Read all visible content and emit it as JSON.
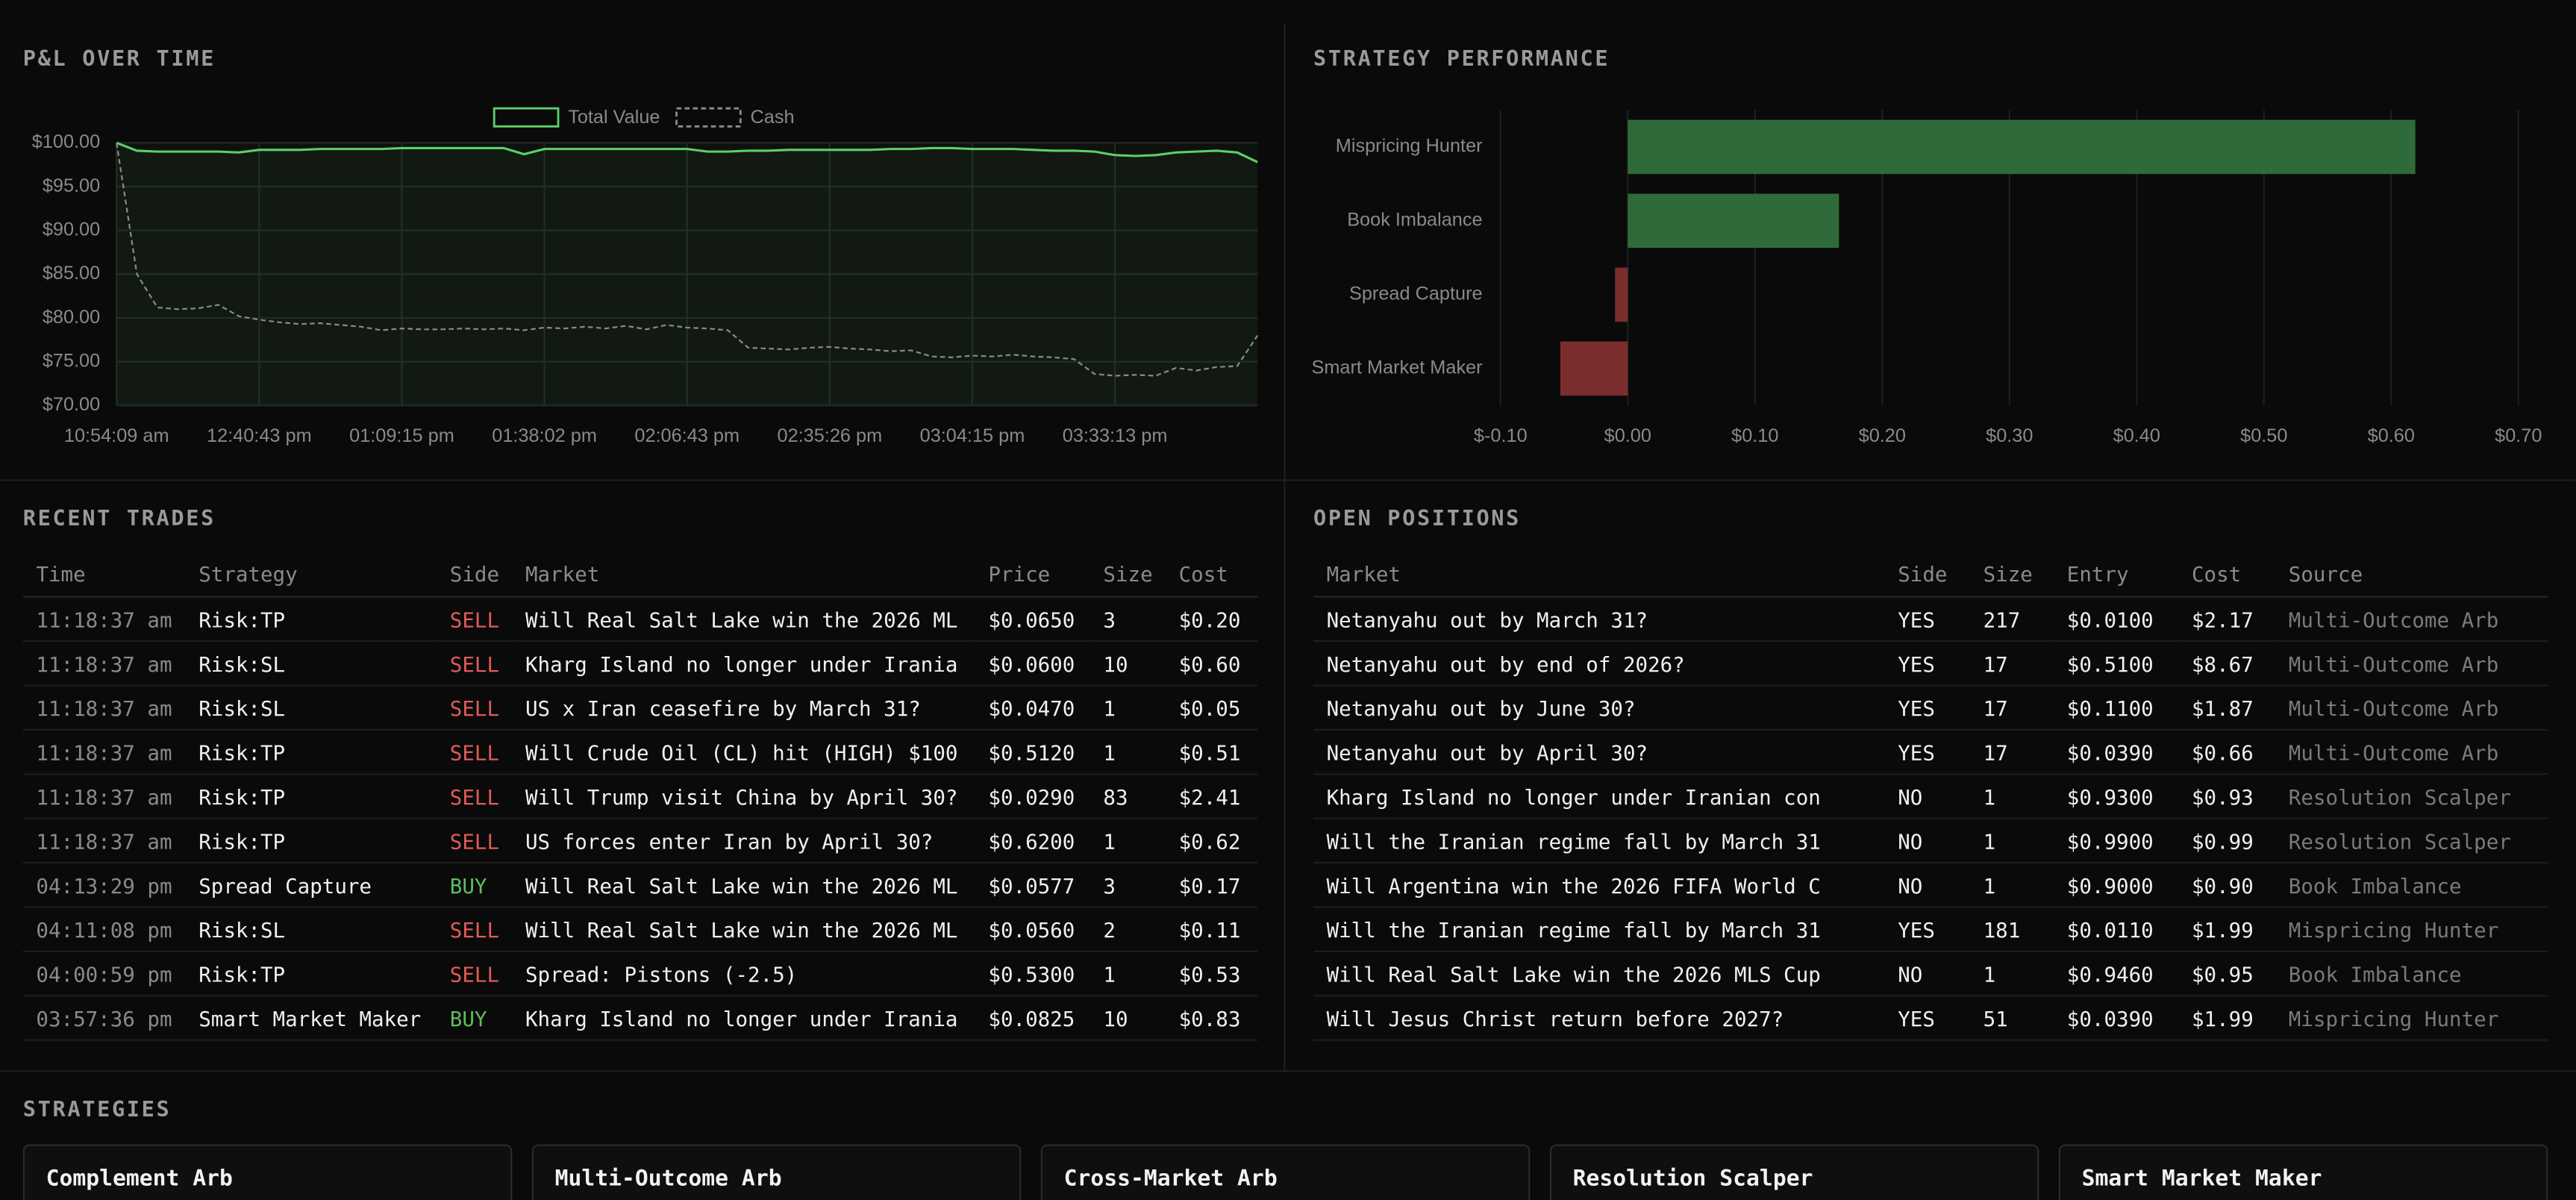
{
  "chart_data": [
    {
      "type": "line",
      "title": "P&L OVER TIME",
      "categories": [
        "10:54:09 am",
        null,
        null,
        null,
        null,
        null,
        null,
        "12:40:43 pm",
        null,
        null,
        null,
        null,
        null,
        null,
        "01:09:15 pm",
        null,
        null,
        null,
        null,
        null,
        null,
        "01:38:02 pm",
        null,
        null,
        null,
        null,
        null,
        null,
        "02:06:43 pm",
        null,
        null,
        null,
        null,
        null,
        null,
        "02:35:26 pm",
        null,
        null,
        null,
        null,
        null,
        null,
        "03:04:15 pm",
        null,
        null,
        null,
        null,
        null,
        null,
        "03:33:13 pm",
        null,
        null,
        null,
        null,
        null,
        null,
        null
      ],
      "series": [
        {
          "name": "Total Value",
          "color": "#5ccf6a",
          "dashed": false,
          "values": [
            100,
            99.1,
            99.0,
            99.0,
            99.0,
            99.0,
            98.9,
            99.2,
            99.2,
            99.2,
            99.3,
            99.3,
            99.3,
            99.3,
            99.4,
            99.4,
            99.4,
            99.4,
            99.4,
            99.4,
            98.7,
            99.3,
            99.3,
            99.3,
            99.3,
            99.3,
            99.3,
            99.3,
            99.3,
            99.0,
            99.0,
            99.1,
            99.1,
            99.2,
            99.2,
            99.2,
            99.2,
            99.2,
            99.3,
            99.3,
            99.4,
            99.4,
            99.3,
            99.3,
            99.3,
            99.2,
            99.1,
            99.1,
            99.0,
            98.6,
            98.5,
            98.6,
            98.9,
            99.0,
            99.1,
            98.9,
            97.8
          ]
        },
        {
          "name": "Cash",
          "color": "#8a8a8a",
          "dashed": true,
          "values": [
            100,
            85,
            81.2,
            81.0,
            81.1,
            81.5,
            80.2,
            79.8,
            79.5,
            79.3,
            79.4,
            79.2,
            79.0,
            78.6,
            78.8,
            78.7,
            78.7,
            78.8,
            78.7,
            78.8,
            78.6,
            78.9,
            78.8,
            79.0,
            78.8,
            79.1,
            78.7,
            79.2,
            78.9,
            78.8,
            78.6,
            76.6,
            76.5,
            76.4,
            76.6,
            76.7,
            76.5,
            76.4,
            76.2,
            76.3,
            75.6,
            75.5,
            75.7,
            75.6,
            75.8,
            75.6,
            75.5,
            75.3,
            73.6,
            73.4,
            73.5,
            73.4,
            74.3,
            74.0,
            74.4,
            74.5,
            78.0
          ]
        }
      ],
      "ylim": [
        70,
        100
      ],
      "yticks": [
        {
          "value": 100,
          "label": "$100.00"
        },
        {
          "value": 95,
          "label": "$95.00"
        },
        {
          "value": 90,
          "label": "$90.00"
        },
        {
          "value": 85,
          "label": "$85.00"
        },
        {
          "value": 80,
          "label": "$80.00"
        },
        {
          "value": 75,
          "label": "$75.00"
        },
        {
          "value": 70,
          "label": "$70.00"
        }
      ],
      "grid": true,
      "legend": "top"
    },
    {
      "type": "hbar",
      "title": "STRATEGY PERFORMANCE",
      "categories": [
        "Mispricing Hunter",
        "Book Imbalance",
        "Spread Capture",
        "Smart Market Maker"
      ],
      "values": [
        0.619,
        0.166,
        -0.01,
        -0.053
      ],
      "positive_color": "#2f6b3a",
      "negative_color": "#7a2e2e",
      "xlim": [
        -0.1,
        0.7
      ],
      "xticks": [
        {
          "value": -0.1,
          "label": "$-0.10"
        },
        {
          "value": 0,
          "label": "$0.00"
        },
        {
          "value": 0.1,
          "label": "$0.10"
        },
        {
          "value": 0.2,
          "label": "$0.20"
        },
        {
          "value": 0.3,
          "label": "$0.30"
        },
        {
          "value": 0.4,
          "label": "$0.40"
        },
        {
          "value": 0.5,
          "label": "$0.50"
        },
        {
          "value": 0.6,
          "label": "$0.60"
        },
        {
          "value": 0.7,
          "label": "$0.70"
        }
      ],
      "grid": true
    }
  ],
  "trades": {
    "title": "RECENT TRADES",
    "columns": [
      "Time",
      "Strategy",
      "Side",
      "Market",
      "Price",
      "Size",
      "Cost"
    ],
    "rows": [
      [
        "11:18:37 am",
        "Risk:TP",
        "SELL",
        "Will Real Salt Lake win the 2026 ML",
        "$0.0650",
        "3",
        "$0.20"
      ],
      [
        "11:18:37 am",
        "Risk:SL",
        "SELL",
        "Kharg Island no longer under Irania",
        "$0.0600",
        "10",
        "$0.60"
      ],
      [
        "11:18:37 am",
        "Risk:SL",
        "SELL",
        "US x Iran ceasefire by March 31?",
        "$0.0470",
        "1",
        "$0.05"
      ],
      [
        "11:18:37 am",
        "Risk:TP",
        "SELL",
        "Will Crude Oil (CL) hit (HIGH) $100",
        "$0.5120",
        "1",
        "$0.51"
      ],
      [
        "11:18:37 am",
        "Risk:TP",
        "SELL",
        "Will Trump visit China by April 30?",
        "$0.0290",
        "83",
        "$2.41"
      ],
      [
        "11:18:37 am",
        "Risk:TP",
        "SELL",
        "US forces enter Iran by April 30?",
        "$0.6200",
        "1",
        "$0.62"
      ],
      [
        "04:13:29 pm",
        "Spread Capture",
        "BUY",
        "Will Real Salt Lake win the 2026 ML",
        "$0.0577",
        "3",
        "$0.17"
      ],
      [
        "04:11:08 pm",
        "Risk:SL",
        "SELL",
        "Will Real Salt Lake win the 2026 ML",
        "$0.0560",
        "2",
        "$0.11"
      ],
      [
        "04:00:59 pm",
        "Risk:TP",
        "SELL",
        "Spread: Pistons (-2.5)",
        "$0.5300",
        "1",
        "$0.53"
      ],
      [
        "03:57:36 pm",
        "Smart Market Maker",
        "BUY",
        "Kharg Island no longer under Irania",
        "$0.0825",
        "10",
        "$0.83"
      ]
    ]
  },
  "positions": {
    "title": "OPEN POSITIONS",
    "columns": [
      "Market",
      "Side",
      "Size",
      "Entry",
      "Cost",
      "Source"
    ],
    "rows": [
      [
        "Netanyahu out by March 31?",
        "YES",
        "217",
        "$0.0100",
        "$2.17",
        "Multi-Outcome Arb"
      ],
      [
        "Netanyahu out by end of 2026?",
        "YES",
        "17",
        "$0.5100",
        "$8.67",
        "Multi-Outcome Arb"
      ],
      [
        "Netanyahu out by June 30?",
        "YES",
        "17",
        "$0.1100",
        "$1.87",
        "Multi-Outcome Arb"
      ],
      [
        "Netanyahu out by April 30?",
        "YES",
        "17",
        "$0.0390",
        "$0.66",
        "Multi-Outcome Arb"
      ],
      [
        "Kharg Island no longer under Iranian con",
        "NO",
        "1",
        "$0.9300",
        "$0.93",
        "Resolution Scalper"
      ],
      [
        "Will the Iranian regime fall by March 31",
        "NO",
        "1",
        "$0.9900",
        "$0.99",
        "Resolution Scalper"
      ],
      [
        "Will Argentina win the 2026 FIFA World C",
        "NO",
        "1",
        "$0.9000",
        "$0.90",
        "Book Imbalance"
      ],
      [
        "Will the Iranian regime fall by March 31",
        "YES",
        "181",
        "$0.0110",
        "$1.99",
        "Mispricing Hunter"
      ],
      [
        "Will Real Salt Lake win the 2026 MLS Cup",
        "NO",
        "1",
        "$0.9460",
        "$0.95",
        "Book Imbalance"
      ],
      [
        "Will Jesus Christ return before 2027?",
        "YES",
        "51",
        "$0.0390",
        "$1.99",
        "Mispricing Hunter"
      ]
    ]
  },
  "strategies": {
    "title": "STRATEGIES",
    "cards": [
      "Complement Arb",
      "Multi-Outcome Arb",
      "Cross-Market Arb",
      "Resolution Scalper",
      "Smart Market Maker"
    ]
  }
}
